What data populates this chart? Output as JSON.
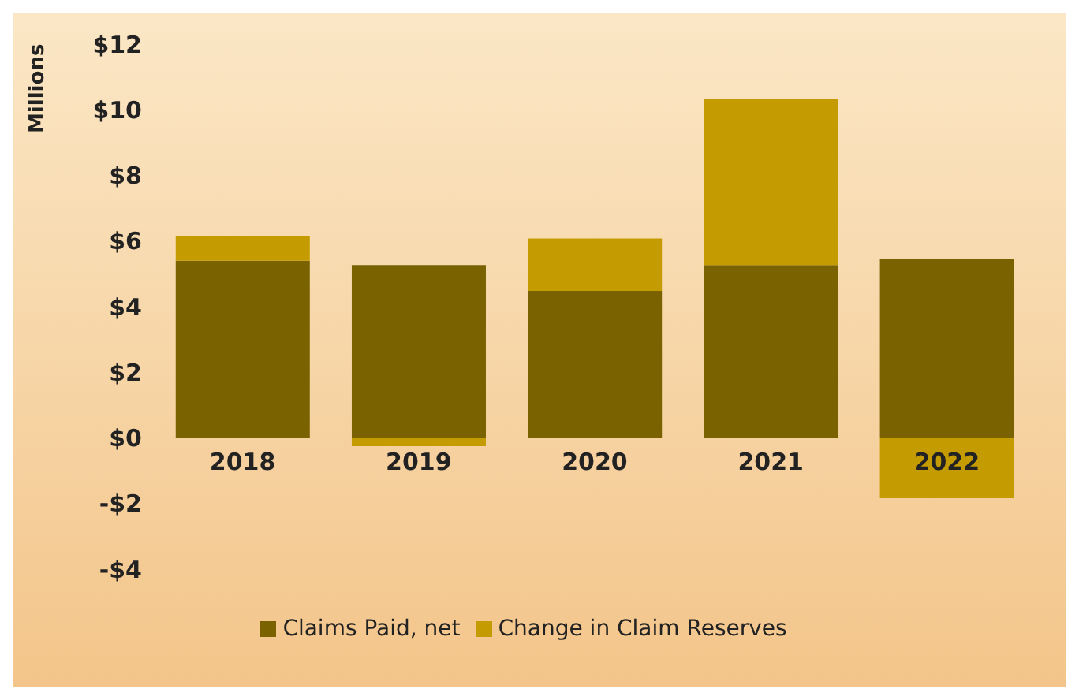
{
  "chart_data": {
    "type": "bar",
    "ylabel": "Millions",
    "categories": [
      "2018",
      "2019",
      "2020",
      "2021",
      "2022"
    ],
    "stacked": true,
    "series": [
      {
        "name": "Claims Paid, net",
        "color": "#7a6200",
        "values": [
          5.4,
          5.27,
          4.48,
          5.27,
          5.44
        ]
      },
      {
        "name": "Change in Claim Reserves",
        "color": "#c49b00",
        "values": [
          0.75,
          -0.25,
          1.6,
          5.06,
          -1.84
        ]
      }
    ],
    "ylim": [
      -4,
      12
    ],
    "yticks": [
      {
        "value": -4,
        "label": "-$4"
      },
      {
        "value": -2,
        "label": "-$2"
      },
      {
        "value": 0,
        "label": "$0"
      },
      {
        "value": 2,
        "label": "$2"
      },
      {
        "value": 4,
        "label": "$4"
      },
      {
        "value": 6,
        "label": "$6"
      },
      {
        "value": 8,
        "label": "$8"
      },
      {
        "value": 10,
        "label": "$10"
      },
      {
        "value": 12,
        "label": "$12"
      }
    ],
    "grid": false,
    "legend": "bottom"
  }
}
